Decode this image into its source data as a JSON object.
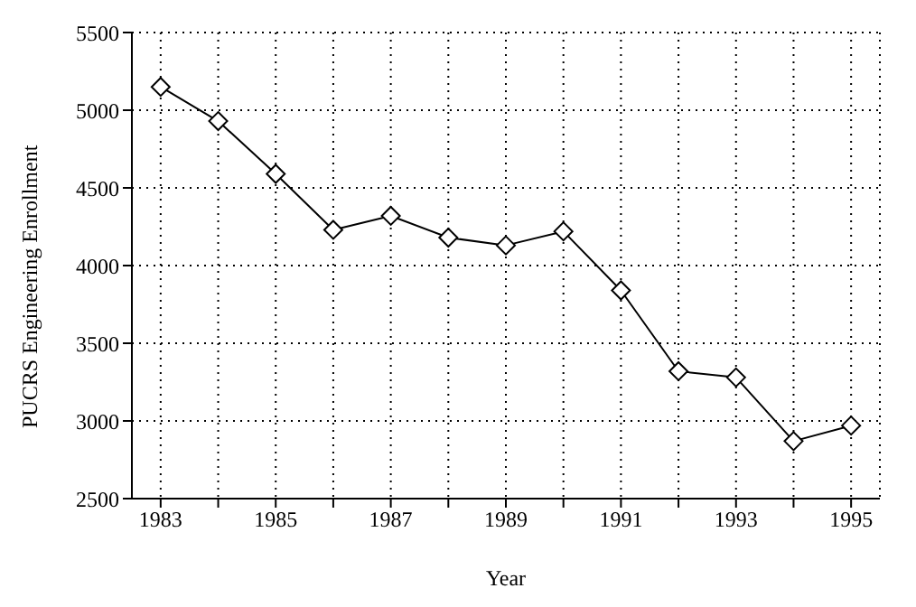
{
  "chart_data": {
    "type": "line",
    "xlabel": "Year",
    "ylabel": "PUCRS Engineering Enrollment",
    "x": [
      1983,
      1984,
      1985,
      1986,
      1987,
      1988,
      1989,
      1990,
      1991,
      1992,
      1993,
      1994,
      1995
    ],
    "series": [
      {
        "color": "#000000",
        "values": [
          5150,
          4930,
          4590,
          4230,
          4320,
          4180,
          4130,
          4220,
          3840,
          3320,
          3280,
          2870,
          2970
        ]
      }
    ],
    "xlim": [
      1982.5,
      1995.5
    ],
    "xticks": [
      1983,
      {
        "value": 1984,
        "label": null
      },
      1985,
      {
        "value": 1986,
        "label": null
      },
      1987,
      {
        "value": 1988,
        "label": null
      },
      1989,
      {
        "value": 1990,
        "label": null
      },
      1991,
      {
        "value": 1992,
        "label": null
      },
      1993,
      {
        "value": 1994,
        "label": null
      },
      1995
    ],
    "ylim": [
      2500,
      5500
    ],
    "yticks": [
      2500,
      3000,
      3500,
      4000,
      4500,
      5000,
      5500
    ],
    "grid": true,
    "marker": "diamond",
    "line_style": "solid",
    "legend": false
  }
}
